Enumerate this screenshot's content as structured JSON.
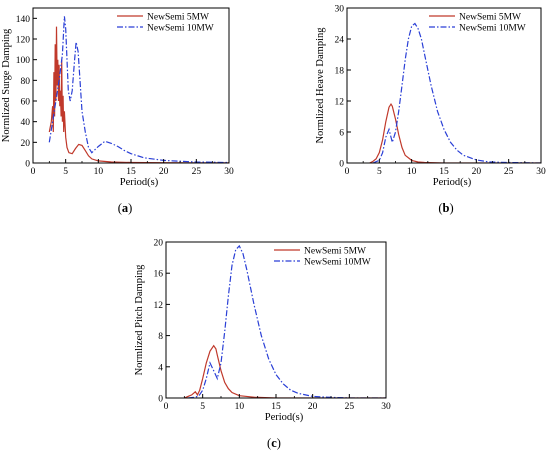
{
  "colors": {
    "series_5mw": "#c0392b",
    "series_10mw": "#2a3fd6",
    "axis": "#000000"
  },
  "panel_labels": [
    "(a)",
    "(b)",
    "(c)"
  ],
  "chart_data": [
    {
      "type": "line",
      "panel": "(a)",
      "xlabel": "Period(s)",
      "ylabel": "Normlized Surge Damping",
      "xlim": [
        0,
        30
      ],
      "ylim": [
        0,
        150
      ],
      "xticks": [
        0,
        5,
        10,
        15,
        20,
        25,
        30
      ],
      "yticks": [
        0,
        20,
        40,
        60,
        80,
        100,
        120,
        140
      ],
      "legend": "top-right",
      "series": [
        {
          "name": "NewSemi 5MW",
          "style": "solid",
          "x": [
            2.5,
            2.8,
            3.0,
            3.1,
            3.2,
            3.3,
            3.4,
            3.5,
            3.6,
            3.7,
            3.8,
            3.9,
            4.0,
            4.1,
            4.2,
            4.3,
            4.4,
            4.5,
            4.6,
            4.7,
            4.8,
            5.0,
            5.2,
            5.5,
            6.0,
            6.5,
            7.0,
            7.5,
            8.0,
            8.5,
            9.0,
            10,
            12,
            15,
            20,
            25,
            30
          ],
          "y": [
            30,
            40,
            55,
            30,
            88,
            45,
            115,
            60,
            132,
            75,
            100,
            60,
            95,
            55,
            70,
            45,
            100,
            40,
            65,
            30,
            50,
            25,
            15,
            10,
            9,
            14,
            18,
            17,
            12,
            7,
            4,
            2,
            1,
            0.5,
            0.3,
            0.2,
            0.1
          ]
        },
        {
          "name": "NewSemi 10MW",
          "style": "dashdot",
          "x": [
            2.5,
            3.0,
            3.5,
            4.0,
            4.5,
            4.8,
            5.0,
            5.2,
            5.4,
            5.7,
            6.0,
            6.3,
            6.6,
            6.9,
            7.2,
            7.5,
            8.0,
            8.5,
            9.0,
            10,
            11,
            12,
            13,
            14,
            15,
            17,
            20,
            23,
            25,
            30
          ],
          "y": [
            20,
            40,
            60,
            80,
            105,
            142,
            130,
            100,
            70,
            60,
            70,
            95,
            117,
            108,
            80,
            50,
            30,
            15,
            10,
            16,
            21,
            19,
            16,
            12,
            9,
            5,
            2.5,
            1.5,
            1,
            0.5
          ]
        }
      ]
    },
    {
      "type": "line",
      "panel": "(b)",
      "xlabel": "Period(s)",
      "ylabel": "Normlized Heave Damping",
      "xlim": [
        0,
        30
      ],
      "ylim": [
        0,
        30
      ],
      "xticks": [
        0,
        5,
        10,
        15,
        20,
        25,
        30
      ],
      "yticks": [
        0,
        6,
        12,
        18,
        24,
        30
      ],
      "legend": "top-right",
      "series": [
        {
          "name": "NewSemi 5MW",
          "style": "solid",
          "x": [
            3.5,
            4.0,
            4.5,
            5.0,
            5.5,
            6.0,
            6.5,
            6.8,
            7.0,
            7.5,
            8.0,
            8.5,
            9.0,
            10,
            11,
            12,
            15,
            20,
            30
          ],
          "y": [
            0,
            0.3,
            0.8,
            2,
            4.5,
            8,
            10.8,
            11.4,
            11,
            8.5,
            5.5,
            3,
            1.5,
            0.5,
            0.2,
            0.1,
            0,
            0,
            0
          ]
        },
        {
          "name": "NewSemi 10MW",
          "style": "dashdot",
          "x": [
            4.0,
            5.0,
            5.5,
            6.0,
            6.5,
            7.0,
            7.5,
            8.0,
            8.5,
            9.0,
            9.5,
            10.0,
            10.5,
            11.0,
            11.5,
            12,
            13,
            14,
            15,
            16,
            17,
            18,
            20,
            22,
            25,
            30
          ],
          "y": [
            0,
            0.5,
            2,
            5,
            6.5,
            4,
            6,
            10,
            15,
            20,
            24,
            26.5,
            27,
            26,
            24,
            21,
            15,
            10,
            6.5,
            4,
            2.5,
            1.5,
            0.6,
            0.2,
            0.1,
            0
          ]
        }
      ]
    },
    {
      "type": "line",
      "panel": "(c)",
      "xlabel": "Period(s)",
      "ylabel": "Normlized Pitch Damping",
      "xlim": [
        0,
        30
      ],
      "ylim": [
        0,
        20
      ],
      "xticks": [
        0,
        5,
        10,
        15,
        20,
        25,
        30
      ],
      "yticks": [
        0,
        4,
        8,
        12,
        16,
        20
      ],
      "legend": "top-right",
      "series": [
        {
          "name": "NewSemi 5MW",
          "style": "solid",
          "x": [
            2.5,
            3.0,
            3.5,
            4.0,
            4.3,
            4.6,
            5.0,
            5.5,
            6.0,
            6.5,
            6.8,
            7.0,
            7.5,
            8.0,
            8.5,
            9.0,
            10,
            12,
            15,
            20,
            30
          ],
          "y": [
            0,
            0.2,
            0.4,
            0.8,
            0.4,
            1.0,
            2.5,
            4.5,
            6.0,
            6.7,
            6.3,
            5.5,
            3.5,
            2.0,
            1.2,
            0.7,
            0.3,
            0.1,
            0,
            0,
            0
          ]
        },
        {
          "name": "NewSemi 10MW",
          "style": "dashdot",
          "x": [
            3.0,
            4.0,
            4.5,
            5.0,
            5.5,
            6.0,
            6.5,
            7.0,
            7.5,
            8.0,
            8.5,
            9.0,
            9.5,
            10.0,
            10.5,
            11.0,
            12,
            13,
            14,
            15,
            16,
            17,
            18,
            20,
            22,
            25,
            30
          ],
          "y": [
            0,
            0.1,
            0.3,
            1.0,
            2.5,
            4.5,
            3.5,
            2.5,
            4.5,
            8.5,
            13,
            17,
            19,
            19.5,
            18.5,
            16.5,
            12,
            8,
            5,
            3,
            1.8,
            1.0,
            0.6,
            0.2,
            0.1,
            0,
            0
          ]
        }
      ]
    }
  ]
}
